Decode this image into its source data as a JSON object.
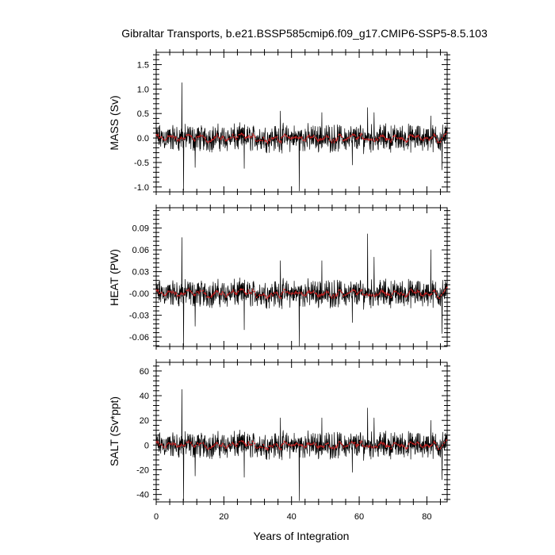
{
  "chart_data": [
    {
      "type": "line",
      "title": "Gibraltar Transports, b.e21.BSSP585cmip6.f09_g17.CMIP6-SSP5-8.5.103",
      "ylabel": "MASS (Sv)",
      "xlim": [
        0,
        86
      ],
      "ylim": [
        -1.1,
        1.75
      ],
      "yticks": [
        -1.0,
        -0.5,
        0.0,
        0.5,
        1.0,
        1.5
      ],
      "ytick_labels": [
        "-1.0",
        "-0.5",
        "0.0",
        "0.5",
        "1.0",
        "1.5"
      ],
      "series": [
        {
          "role": "monthly",
          "color": "#000000",
          "amplitude": 0.22,
          "spikes": [
            [
              7.6,
              1.13
            ],
            [
              8.1,
              -1.07
            ],
            [
              42.3,
              -1.08
            ],
            [
              36.7,
              0.55
            ],
            [
              62.5,
              0.62
            ],
            [
              81.2,
              0.45
            ],
            [
              64.4,
              0.52
            ],
            [
              49.0,
              0.52
            ],
            [
              11.5,
              -0.6
            ],
            [
              26.0,
              -0.62
            ],
            [
              58.0,
              -0.55
            ],
            [
              84.5,
              -0.65
            ]
          ]
        },
        {
          "role": "smoothed",
          "color": "#cc2222",
          "amplitude": 0.06
        }
      ]
    },
    {
      "type": "line",
      "ylabel": "HEAT (PW)",
      "xlim": [
        0,
        86
      ],
      "ylim": [
        -0.073,
        0.118
      ],
      "yticks": [
        -0.06,
        -0.03,
        0.0,
        0.03,
        0.06,
        0.09
      ],
      "ytick_labels": [
        "-0.06",
        "-0.03",
        "-0.00",
        "0.03",
        "0.06",
        "0.09"
      ],
      "series": [
        {
          "role": "monthly",
          "color": "#000000",
          "amplitude": 0.015,
          "spikes": [
            [
              7.6,
              0.077
            ],
            [
              8.1,
              -0.072
            ],
            [
              42.3,
              -0.072
            ],
            [
              36.7,
              0.045
            ],
            [
              62.5,
              0.082
            ],
            [
              81.2,
              0.06
            ],
            [
              64.4,
              0.05
            ],
            [
              49.0,
              0.045
            ],
            [
              11.5,
              -0.045
            ],
            [
              26.0,
              -0.05
            ],
            [
              58.0,
              -0.04
            ],
            [
              84.5,
              -0.055
            ]
          ]
        },
        {
          "role": "smoothed",
          "color": "#cc2222",
          "amplitude": 0.004
        }
      ]
    },
    {
      "type": "line",
      "ylabel": "SALT (Sv*ppt)",
      "xlabel": "Years of Integration",
      "xlim": [
        0,
        86
      ],
      "xticks": [
        0,
        20,
        40,
        60,
        80
      ],
      "xtick_labels": [
        "0",
        "20",
        "40",
        "60",
        "80"
      ],
      "ylim": [
        -46,
        67
      ],
      "yticks": [
        -40,
        -20,
        0,
        20,
        40,
        60
      ],
      "ytick_labels": [
        "-40",
        "-20",
        "0",
        "20",
        "40",
        "60"
      ],
      "series": [
        {
          "role": "monthly",
          "color": "#000000",
          "amplitude": 8.5,
          "spikes": [
            [
              7.6,
              45
            ],
            [
              8.1,
              -45
            ],
            [
              42.3,
              -45
            ],
            [
              36.7,
              22
            ],
            [
              62.5,
              30
            ],
            [
              81.2,
              20
            ],
            [
              64.4,
              22
            ],
            [
              49.0,
              22
            ],
            [
              11.5,
              -25
            ],
            [
              26.0,
              -26
            ],
            [
              58.0,
              -22
            ],
            [
              84.5,
              -28
            ]
          ]
        },
        {
          "role": "smoothed",
          "color": "#cc2222",
          "amplitude": 2.2
        }
      ]
    }
  ]
}
